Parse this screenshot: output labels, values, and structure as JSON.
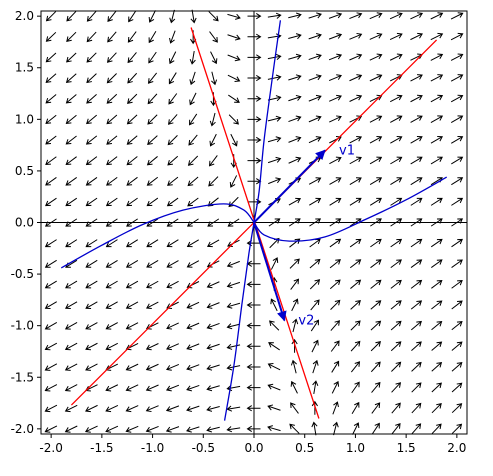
{
  "chart_data": {
    "type": "vector-field",
    "title": "",
    "xlabel": "",
    "ylabel": "",
    "xlim": [
      -2.1,
      2.1
    ],
    "ylim": [
      -2.05,
      2.05
    ],
    "x_ticks": [
      "-2.0",
      "-1.5",
      "-1.0",
      "-0.5",
      "0.0",
      "0.5",
      "1.0",
      "1.5",
      "2.0"
    ],
    "y_ticks": [
      "-2.0",
      "-1.5",
      "-1.0",
      "-0.5",
      "0.0",
      "0.5",
      "1.0",
      "1.5",
      "2.0"
    ],
    "grid": false,
    "field": {
      "matrix": [
        [
          1.5,
          0.5
        ],
        [
          1.0,
          0.0
        ]
      ],
      "x_range": [
        -2.0,
        2.0
      ],
      "y_range": [
        -2.0,
        2.0
      ],
      "samples": 21,
      "color": "#000000"
    },
    "eigenlines": [
      {
        "label": "",
        "color": "#ff0000",
        "points": [
          [
            -1.8,
            -1.77
          ],
          [
            1.8,
            1.77
          ]
        ]
      },
      {
        "label": "",
        "color": "#ff0000",
        "points": [
          [
            -0.62,
            1.89
          ],
          [
            0.64,
            -1.9
          ]
        ]
      }
    ],
    "trajectories": [
      {
        "color": "#0000cc",
        "points": [
          [
            0.0,
            0.0
          ],
          [
            0.05,
            0.3
          ],
          [
            0.1,
            0.8
          ],
          [
            0.18,
            1.4
          ],
          [
            0.26,
            1.96
          ]
        ]
      },
      {
        "color": "#0000cc",
        "points": [
          [
            0.0,
            0.0
          ],
          [
            -0.05,
            -0.3
          ],
          [
            -0.12,
            -0.8
          ],
          [
            -0.2,
            -1.4
          ],
          [
            -0.29,
            -1.92
          ]
        ]
      },
      {
        "color": "#0000cc",
        "points": [
          [
            -1.9,
            -0.44
          ],
          [
            -1.5,
            -0.22
          ],
          [
            -1.1,
            -0.02
          ],
          [
            -0.7,
            0.12
          ],
          [
            -0.3,
            0.18
          ],
          [
            -0.1,
            0.12
          ],
          [
            0.0,
            0.0
          ]
        ]
      },
      {
        "color": "#0000cc",
        "points": [
          [
            0.0,
            0.0
          ],
          [
            0.1,
            -0.12
          ],
          [
            0.35,
            -0.18
          ],
          [
            0.7,
            -0.14
          ],
          [
            1.1,
            0.03
          ],
          [
            1.5,
            0.22
          ],
          [
            1.9,
            0.44
          ]
        ]
      }
    ],
    "vectors": [
      {
        "label": "v1",
        "x": 0.7,
        "y": 0.7,
        "color": "#0000cc"
      },
      {
        "label": "v2",
        "x": 0.3,
        "y": -0.95,
        "color": "#0000cc"
      }
    ],
    "axis_color": "#000000"
  }
}
